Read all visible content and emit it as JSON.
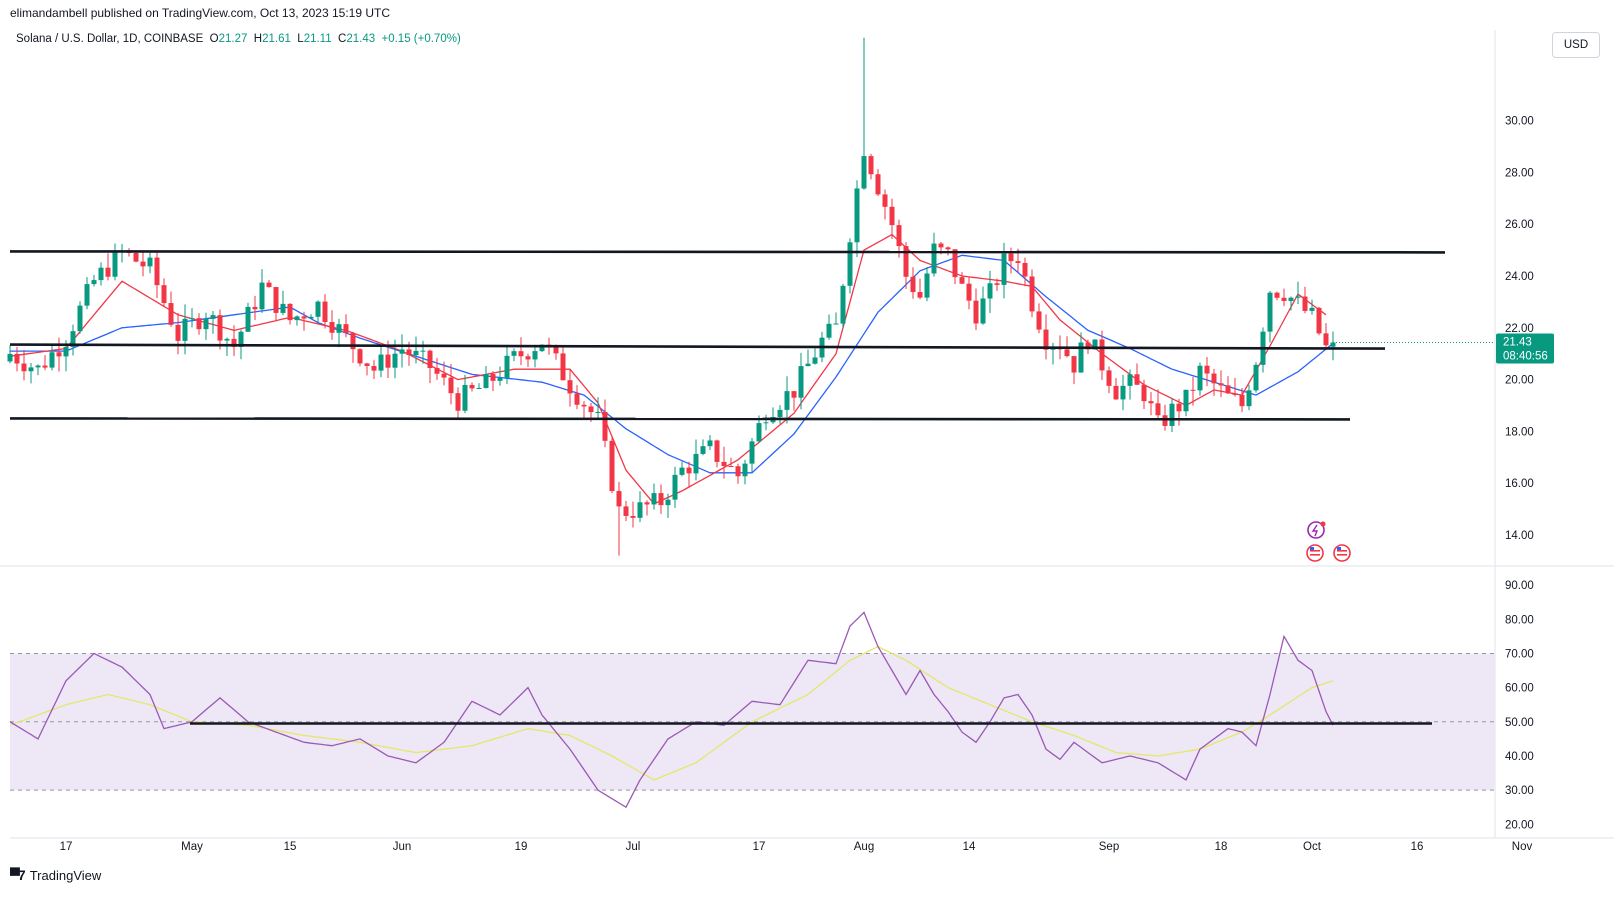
{
  "header": {
    "published_by": "elimandambell published on TradingView.com, Oct 13, 2023 15:19 UTC"
  },
  "legend": {
    "symbol": "Solana / U.S. Dollar, 1D, COINBASE",
    "open_label": "O",
    "open": "21.27",
    "high_label": "H",
    "high": "21.61",
    "low_label": "L",
    "low": "21.11",
    "close_label": "C",
    "close": "21.43",
    "change": "+0.15 (+0.70%)"
  },
  "currency_button": "USD",
  "price_tag": {
    "price": "21.43",
    "countdown": "08:40:56"
  },
  "footer": {
    "brand": "TradingView"
  },
  "colors": {
    "up": "#089981",
    "down": "#f23645",
    "ema_fast": "#f23645",
    "ema_slow": "#2962ff",
    "rsi": "#9b59b6",
    "rsi_ma": "#e4e86a",
    "rsi_band": "#ede7f6",
    "level": "#131722"
  },
  "chart_data": [
    {
      "type": "candlestick",
      "title": "Solana / U.S. Dollar, 1D, COINBASE",
      "x_tick_labels": [
        "17",
        "May",
        "15",
        "Jun",
        "19",
        "Jul",
        "17",
        "Aug",
        "14",
        "Sep",
        "18",
        "Oct",
        "16",
        "Nov"
      ],
      "y_tick_labels": [
        "14.00",
        "16.00",
        "18.00",
        "20.00",
        "22.00",
        "24.00",
        "26.00",
        "28.00",
        "30.00"
      ],
      "ylim": [
        12.8,
        33.5
      ],
      "close_path": [
        [
          0,
          21
        ],
        [
          4,
          20.4
        ],
        [
          8,
          21.6
        ],
        [
          12,
          23.8
        ],
        [
          16,
          24.9
        ],
        [
          20,
          24.3
        ],
        [
          24,
          21.7
        ],
        [
          28,
          22.6
        ],
        [
          32,
          21.3
        ],
        [
          36,
          23.6
        ],
        [
          40,
          22.3
        ],
        [
          44,
          22.9
        ],
        [
          48,
          21.6
        ],
        [
          52,
          20.4
        ],
        [
          56,
          21.2
        ],
        [
          60,
          20.5
        ],
        [
          64,
          19.2
        ],
        [
          68,
          19.8
        ],
        [
          72,
          20.8
        ],
        [
          76,
          21.5
        ],
        [
          80,
          19.8
        ],
        [
          84,
          18.4
        ],
        [
          87,
          14.9
        ],
        [
          90,
          15.0
        ],
        [
          93,
          15.3
        ],
        [
          96,
          16.5
        ],
        [
          100,
          17.3
        ],
        [
          104,
          16.3
        ],
        [
          108,
          18.8
        ],
        [
          112,
          19.6
        ],
        [
          116,
          21.5
        ],
        [
          118,
          22.0
        ],
        [
          120,
          25.7
        ],
        [
          122,
          29.0
        ],
        [
          124,
          27.5
        ],
        [
          126,
          26.0
        ],
        [
          128,
          24.0
        ],
        [
          130,
          23.2
        ],
        [
          132,
          25.0
        ],
        [
          134,
          24.8
        ],
        [
          136,
          23.5
        ],
        [
          138,
          22.6
        ],
        [
          140,
          23.3
        ],
        [
          142,
          24.5
        ],
        [
          144,
          24.8
        ],
        [
          146,
          23.0
        ],
        [
          148,
          21.6
        ],
        [
          150,
          21.4
        ],
        [
          152,
          20.6
        ],
        [
          154,
          21.6
        ],
        [
          156,
          20.6
        ],
        [
          158,
          19.6
        ],
        [
          160,
          19.8
        ],
        [
          162,
          19.5
        ],
        [
          164,
          18.2
        ],
        [
          166,
          18.8
        ],
        [
          168,
          19.2
        ],
        [
          170,
          20.3
        ],
        [
          172,
          19.8
        ],
        [
          174,
          19.3
        ],
        [
          176,
          19.0
        ],
        [
          178,
          20.8
        ],
        [
          180,
          23.5
        ],
        [
          182,
          23.4
        ],
        [
          184,
          22.9
        ],
        [
          186,
          22.4
        ],
        [
          188,
          21.2
        ],
        [
          189,
          21.43
        ]
      ],
      "ema_fast_path": [
        [
          0,
          20.9
        ],
        [
          8,
          21.2
        ],
        [
          16,
          23.8
        ],
        [
          24,
          22.5
        ],
        [
          32,
          21.9
        ],
        [
          40,
          22.4
        ],
        [
          48,
          21.9
        ],
        [
          56,
          21.1
        ],
        [
          64,
          20.0
        ],
        [
          72,
          20.4
        ],
        [
          80,
          20.4
        ],
        [
          84,
          19.1
        ],
        [
          88,
          16.5
        ],
        [
          92,
          15.2
        ],
        [
          96,
          15.7
        ],
        [
          104,
          16.9
        ],
        [
          112,
          18.7
        ],
        [
          118,
          21.0
        ],
        [
          122,
          25.0
        ],
        [
          126,
          25.6
        ],
        [
          130,
          24.6
        ],
        [
          136,
          24.0
        ],
        [
          142,
          23.8
        ],
        [
          146,
          23.6
        ],
        [
          150,
          22.3
        ],
        [
          156,
          21.0
        ],
        [
          162,
          19.8
        ],
        [
          168,
          19.0
        ],
        [
          172,
          19.6
        ],
        [
          176,
          19.4
        ],
        [
          180,
          21.3
        ],
        [
          184,
          23.3
        ],
        [
          188,
          22.5
        ]
      ],
      "ema_slow_path": [
        [
          0,
          21.1
        ],
        [
          8,
          21.1
        ],
        [
          16,
          22.0
        ],
        [
          24,
          22.2
        ],
        [
          32,
          22.5
        ],
        [
          40,
          22.8
        ],
        [
          44,
          22.2
        ],
        [
          50,
          21.6
        ],
        [
          58,
          20.9
        ],
        [
          66,
          20.2
        ],
        [
          76,
          19.9
        ],
        [
          82,
          19.4
        ],
        [
          88,
          18.1
        ],
        [
          94,
          17.1
        ],
        [
          100,
          16.4
        ],
        [
          106,
          16.4
        ],
        [
          112,
          17.9
        ],
        [
          118,
          20.1
        ],
        [
          124,
          22.6
        ],
        [
          130,
          24.2
        ],
        [
          136,
          24.8
        ],
        [
          142,
          24.6
        ],
        [
          148,
          23.2
        ],
        [
          154,
          21.9
        ],
        [
          160,
          21.2
        ],
        [
          166,
          20.4
        ],
        [
          172,
          19.9
        ],
        [
          178,
          19.4
        ],
        [
          184,
          20.3
        ],
        [
          189,
          21.4
        ]
      ],
      "level_lines": [
        {
          "price": 24.95,
          "x_end": "Oct 25"
        },
        {
          "price": 21.35,
          "x_end": "Oct 21"
        },
        {
          "price": 18.5,
          "x_end": "Oct 18"
        }
      ]
    },
    {
      "type": "line",
      "name": "RSI",
      "y_tick_labels": [
        "20.00",
        "30.00",
        "40.00",
        "50.00",
        "60.00",
        "70.00",
        "80.00",
        "90.00"
      ],
      "ylim": [
        16,
        95
      ],
      "band": [
        30,
        70
      ],
      "midline": 50,
      "rsi_path": [
        [
          0,
          50
        ],
        [
          4,
          45
        ],
        [
          8,
          62
        ],
        [
          12,
          70
        ],
        [
          16,
          66
        ],
        [
          20,
          58
        ],
        [
          22,
          48
        ],
        [
          26,
          50
        ],
        [
          30,
          57
        ],
        [
          34,
          50
        ],
        [
          38,
          47
        ],
        [
          42,
          44
        ],
        [
          46,
          43
        ],
        [
          50,
          45
        ],
        [
          54,
          40
        ],
        [
          58,
          38
        ],
        [
          62,
          44
        ],
        [
          66,
          56
        ],
        [
          70,
          52
        ],
        [
          74,
          60
        ],
        [
          76,
          52
        ],
        [
          80,
          42
        ],
        [
          84,
          30
        ],
        [
          88,
          25
        ],
        [
          90,
          33
        ],
        [
          94,
          45
        ],
        [
          98,
          50
        ],
        [
          102,
          49
        ],
        [
          106,
          56
        ],
        [
          110,
          55
        ],
        [
          114,
          68
        ],
        [
          118,
          67
        ],
        [
          120,
          78
        ],
        [
          122,
          82
        ],
        [
          124,
          72
        ],
        [
          126,
          65
        ],
        [
          128,
          58
        ],
        [
          130,
          65
        ],
        [
          132,
          58
        ],
        [
          134,
          53
        ],
        [
          136,
          47
        ],
        [
          138,
          44
        ],
        [
          140,
          50
        ],
        [
          142,
          57
        ],
        [
          144,
          58
        ],
        [
          146,
          52
        ],
        [
          148,
          42
        ],
        [
          150,
          39
        ],
        [
          152,
          44
        ],
        [
          156,
          38
        ],
        [
          160,
          40
        ],
        [
          164,
          38
        ],
        [
          168,
          33
        ],
        [
          170,
          42
        ],
        [
          172,
          45
        ],
        [
          174,
          48
        ],
        [
          176,
          47
        ],
        [
          178,
          43
        ],
        [
          180,
          58
        ],
        [
          182,
          75
        ],
        [
          184,
          68
        ],
        [
          186,
          65
        ],
        [
          188,
          53
        ],
        [
          189,
          49
        ]
      ],
      "rsi_ma_path": [
        [
          0,
          49
        ],
        [
          8,
          55
        ],
        [
          14,
          58
        ],
        [
          20,
          55
        ],
        [
          26,
          50
        ],
        [
          34,
          49
        ],
        [
          42,
          46
        ],
        [
          50,
          44
        ],
        [
          58,
          41
        ],
        [
          66,
          43
        ],
        [
          74,
          48
        ],
        [
          80,
          46
        ],
        [
          86,
          40
        ],
        [
          92,
          33
        ],
        [
          98,
          38
        ],
        [
          106,
          50
        ],
        [
          114,
          58
        ],
        [
          120,
          68
        ],
        [
          124,
          72
        ],
        [
          128,
          68
        ],
        [
          134,
          60
        ],
        [
          140,
          55
        ],
        [
          146,
          50
        ],
        [
          152,
          46
        ],
        [
          158,
          41
        ],
        [
          164,
          40
        ],
        [
          170,
          42
        ],
        [
          176,
          47
        ],
        [
          180,
          52
        ],
        [
          186,
          60
        ],
        [
          189,
          62
        ]
      ],
      "level_line": 49.5
    }
  ]
}
